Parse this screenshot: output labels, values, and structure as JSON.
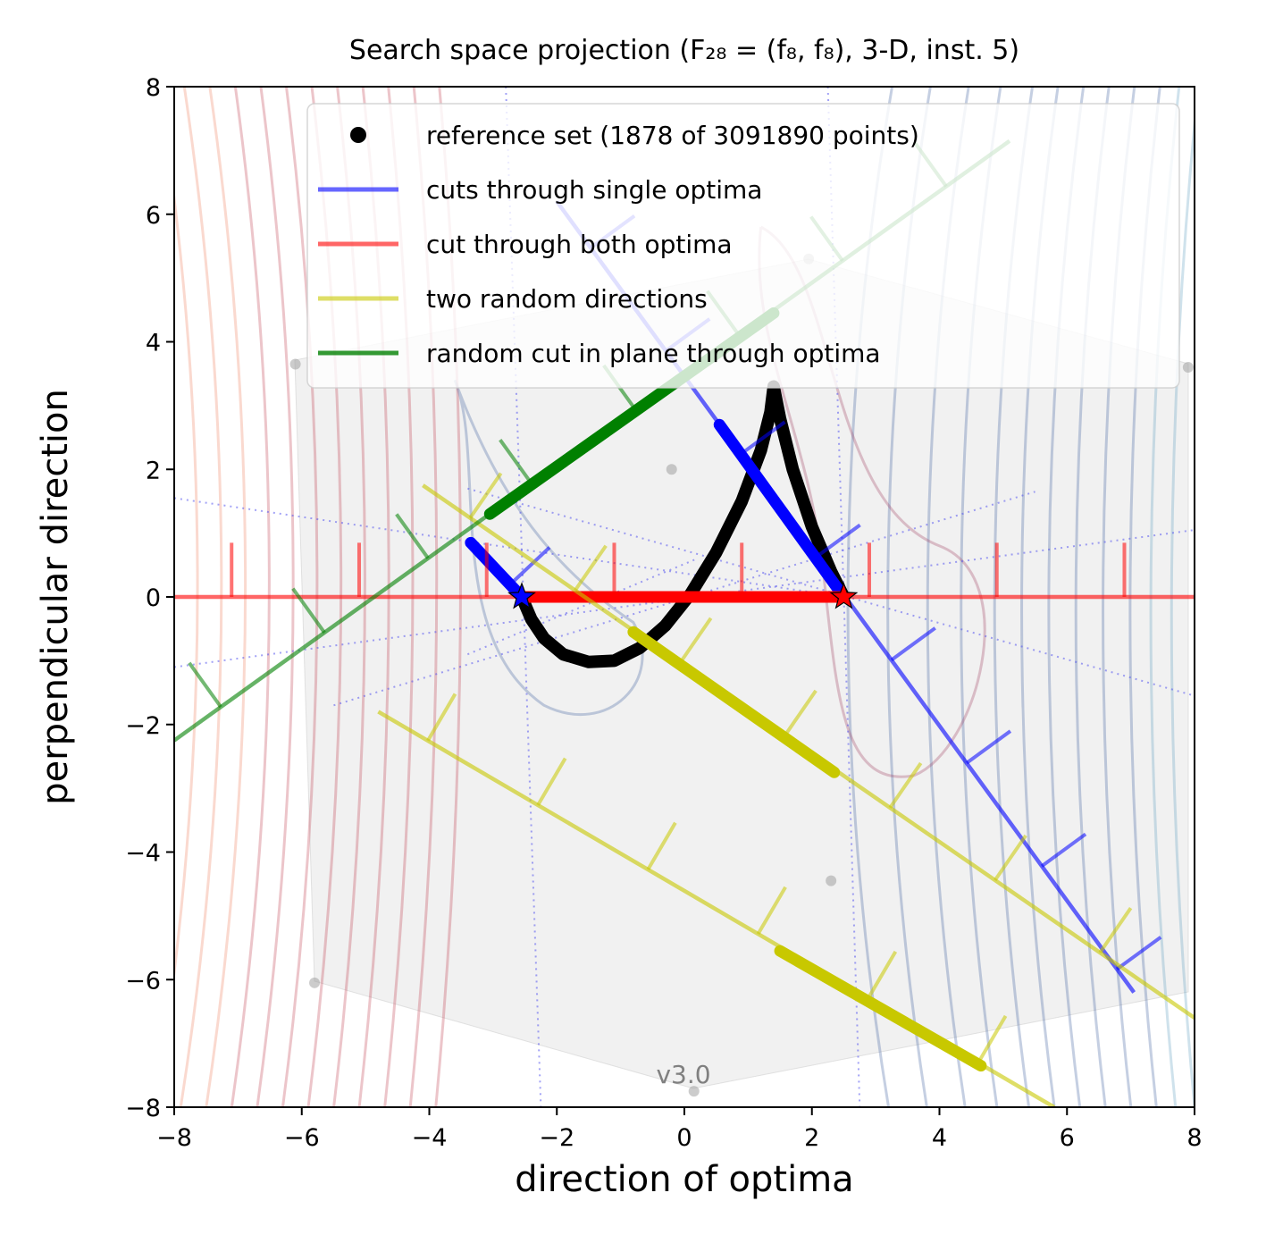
{
  "chart_data": {
    "type": "line",
    "title": "Search space projection (F₂₈ = (f₈, f₈), 3-D, inst. 5)",
    "xlabel": "direction of optima",
    "ylabel": "perpendicular direction",
    "xlim": [
      -8,
      8
    ],
    "ylim": [
      -8,
      8
    ],
    "xticks": [
      -8,
      -6,
      -4,
      -2,
      0,
      2,
      4,
      6,
      8
    ],
    "yticks": [
      -8,
      -6,
      -4,
      -2,
      0,
      2,
      4,
      6,
      8
    ],
    "xtick_labels": [
      "−8",
      "−6",
      "−4",
      "−2",
      "0",
      "2",
      "4",
      "6",
      "8"
    ],
    "ytick_labels": [
      "−8",
      "−6",
      "−4",
      "−2",
      "0",
      "2",
      "4",
      "6",
      "8"
    ],
    "grid": false,
    "legend_position": "top-right",
    "watermark": "v3.0",
    "legend": [
      {
        "label": "reference set (1878 of 3091890 points)",
        "kind": "dot",
        "color": "#000000"
      },
      {
        "label": "cuts through single optima",
        "kind": "line",
        "color": "#0000ff"
      },
      {
        "label": "cut through both optima",
        "kind": "line",
        "color": "#ff0000"
      },
      {
        "label": "two random directions",
        "kind": "line",
        "color": "#c8c800"
      },
      {
        "label": "random cut in plane through optima",
        "kind": "line",
        "color": "#008000"
      }
    ],
    "optima": [
      {
        "name": "optimum 1",
        "x": -2.55,
        "y": 0.0,
        "color": "#0000ff"
      },
      {
        "name": "optimum 2",
        "x": 2.5,
        "y": 0.0,
        "color": "#ff0000"
      }
    ],
    "series": [
      {
        "role": "reference-set",
        "color": "#000000",
        "points": [
          [
            -2.55,
            0
          ],
          [
            -2.4,
            -0.35
          ],
          [
            -2.2,
            -0.65
          ],
          [
            -1.9,
            -0.9
          ],
          [
            -1.5,
            -1.02
          ],
          [
            -1.1,
            -1.0
          ],
          [
            -0.7,
            -0.8
          ],
          [
            -0.3,
            -0.45
          ],
          [
            0.1,
            0.05
          ],
          [
            0.5,
            0.7
          ],
          [
            0.9,
            1.5
          ],
          [
            1.2,
            2.3
          ],
          [
            1.35,
            2.9
          ],
          [
            1.4,
            3.3
          ],
          [
            1.5,
            2.8
          ],
          [
            1.7,
            2.0
          ],
          [
            2.0,
            1.1
          ],
          [
            2.3,
            0.4
          ],
          [
            2.5,
            0.0
          ]
        ]
      },
      {
        "role": "cut-through-single-optima",
        "color": "#0000ff",
        "segments": [
          {
            "from": [
              -2.0,
              6.2
            ],
            "to": [
              7.05,
              -6.2
            ],
            "bold_from": [
              0.55,
              2.7
            ],
            "bold_to": [
              2.5,
              0.0
            ]
          },
          {
            "from": [
              -3.35,
              0.85
            ],
            "to": [
              -2.55,
              0.0
            ],
            "bold_from": [
              -3.35,
              0.85
            ],
            "bold_to": [
              -2.55,
              0.0
            ]
          }
        ]
      },
      {
        "role": "cut-through-both-optima",
        "color": "#ff0000",
        "segments": [
          {
            "from": [
              -8,
              0
            ],
            "to": [
              8,
              0
            ],
            "bold_from": [
              -2.55,
              0
            ],
            "bold_to": [
              2.5,
              0
            ]
          }
        ]
      },
      {
        "role": "two-random-directions",
        "color": "#c8c800",
        "segments": [
          {
            "from": [
              -4.1,
              1.75
            ],
            "to": [
              8.0,
              -6.6
            ],
            "bold_from": [
              -0.8,
              -0.55
            ],
            "bold_to": [
              2.35,
              -2.75
            ]
          },
          {
            "from": [
              -4.8,
              -1.8
            ],
            "to": [
              5.8,
              -8.0
            ],
            "bold_from": [
              1.5,
              -5.55
            ],
            "bold_to": [
              4.65,
              -7.35
            ]
          }
        ]
      },
      {
        "role": "random-cut-in-plane-through-optima",
        "color": "#008000",
        "segments": [
          {
            "from": [
              -8.0,
              -2.25
            ],
            "to": [
              5.1,
              7.15
            ],
            "bold_from": [
              -3.05,
              1.3
            ],
            "bold_to": [
              1.4,
              4.45
            ]
          }
        ]
      }
    ]
  }
}
